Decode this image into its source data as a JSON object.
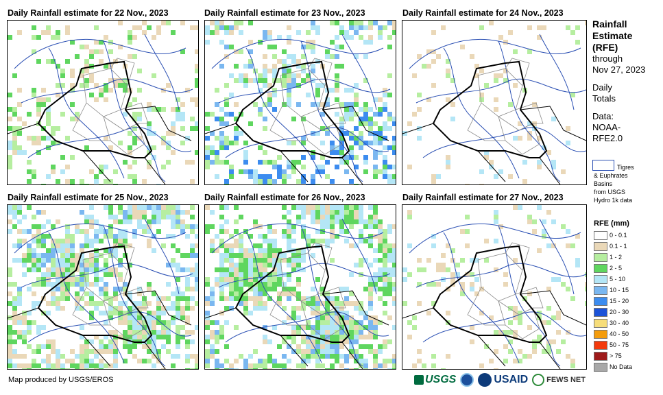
{
  "panels": [
    {
      "title": "Daily Rainfall estimate for 22 Nov., 2023",
      "day": 22
    },
    {
      "title": "Daily Rainfall estimate for 23 Nov., 2023",
      "day": 23
    },
    {
      "title": "Daily Rainfall estimate for 24 Nov., 2023",
      "day": 24
    },
    {
      "title": "Daily Rainfall estimate for 25 Nov., 2023",
      "day": 25
    },
    {
      "title": "Daily Rainfall estimate for 26 Nov., 2023",
      "day": 26
    },
    {
      "title": "Daily Rainfall estimate for 27 Nov., 2023",
      "day": 27
    }
  ],
  "side": {
    "title_lines": [
      "Rainfall",
      "Estimate",
      "(RFE)"
    ],
    "through": "through",
    "date": "Nov 27, 2023",
    "daily": "Daily",
    "totals": "Totals",
    "data_label": "Data:",
    "data_src1": "NOAA-",
    "data_src2": "RFE2.0"
  },
  "basin_legend": {
    "line1": "Tigres",
    "line2": "& Euphrates",
    "line3": "Basins",
    "line4": "from USGS",
    "line5": "Hydro 1k data",
    "color": "#2a4fb3"
  },
  "legend": {
    "title": "RFE (mm)",
    "items": [
      {
        "label": "0 - 0.1",
        "color": "#ffffff"
      },
      {
        "label": "0.1 - 1",
        "color": "#ead8b8"
      },
      {
        "label": "1 - 2",
        "color": "#b6eea0"
      },
      {
        "label": "2 - 5",
        "color": "#5fd65f"
      },
      {
        "label": "5 - 10",
        "color": "#b4e6f6"
      },
      {
        "label": "10 - 15",
        "color": "#7ab7f0"
      },
      {
        "label": "15 - 20",
        "color": "#3c8cef"
      },
      {
        "label": "20 - 30",
        "color": "#1c53d8"
      },
      {
        "label": "30 - 40",
        "color": "#f6dd7a"
      },
      {
        "label": "40 - 50",
        "color": "#f49c0c"
      },
      {
        "label": "50 - 75",
        "color": "#f43a0c"
      },
      {
        "label": "> 75",
        "color": "#9e1a1a"
      },
      {
        "label": "No Data",
        "color": "#a8a8a8"
      }
    ]
  },
  "footer": {
    "credit": "Map produced by USGS/EROS",
    "logo_usgs": "USGS",
    "logo_usaid": "USAID",
    "logo_fews": "FEWS NET"
  }
}
